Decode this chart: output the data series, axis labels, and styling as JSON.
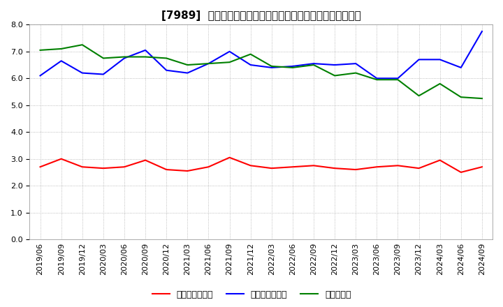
{
  "title": "[7989]  売上債権回転率、買入債務回転率、在庫回転率の推移",
  "x_labels": [
    "2019/06",
    "2019/09",
    "2019/12",
    "2020/03",
    "2020/06",
    "2020/09",
    "2020/12",
    "2021/03",
    "2021/06",
    "2021/09",
    "2021/12",
    "2022/03",
    "2022/06",
    "2022/09",
    "2022/12",
    "2023/03",
    "2023/06",
    "2023/09",
    "2023/12",
    "2024/03",
    "2024/06",
    "2024/09"
  ],
  "uriageSaiken": [
    2.7,
    3.0,
    2.7,
    2.65,
    2.7,
    2.95,
    2.6,
    2.55,
    2.7,
    3.05,
    2.75,
    2.65,
    2.7,
    2.75,
    2.65,
    2.6,
    2.7,
    2.75,
    2.65,
    2.95,
    2.5,
    2.7
  ],
  "kainyuSaimu": [
    6.1,
    6.65,
    6.2,
    6.15,
    6.75,
    7.05,
    6.3,
    6.2,
    6.55,
    7.0,
    6.5,
    6.4,
    6.45,
    6.55,
    6.5,
    6.55,
    6.0,
    6.0,
    6.7,
    6.7,
    6.4,
    7.75
  ],
  "zaiko": [
    7.05,
    7.1,
    7.25,
    6.75,
    6.8,
    6.8,
    6.75,
    6.5,
    6.55,
    6.6,
    6.9,
    6.45,
    6.4,
    6.5,
    6.1,
    6.2,
    5.95,
    5.95,
    5.35,
    5.8,
    5.3,
    5.25
  ],
  "colors": [
    "#ff0000",
    "#0000ff",
    "#008000"
  ],
  "legend_labels": [
    "売上債権回転率",
    "買入債務回転率",
    "在庫回転率"
  ],
  "ylim": [
    0.0,
    8.0
  ],
  "yticks": [
    0.0,
    1.0,
    2.0,
    3.0,
    4.0,
    5.0,
    6.0,
    7.0,
    8.0
  ],
  "bg_color": "#ffffff",
  "grid_color": "#aaaaaa",
  "title_fontsize": 11,
  "tick_fontsize": 8,
  "legend_fontsize": 9,
  "linewidth": 1.5
}
